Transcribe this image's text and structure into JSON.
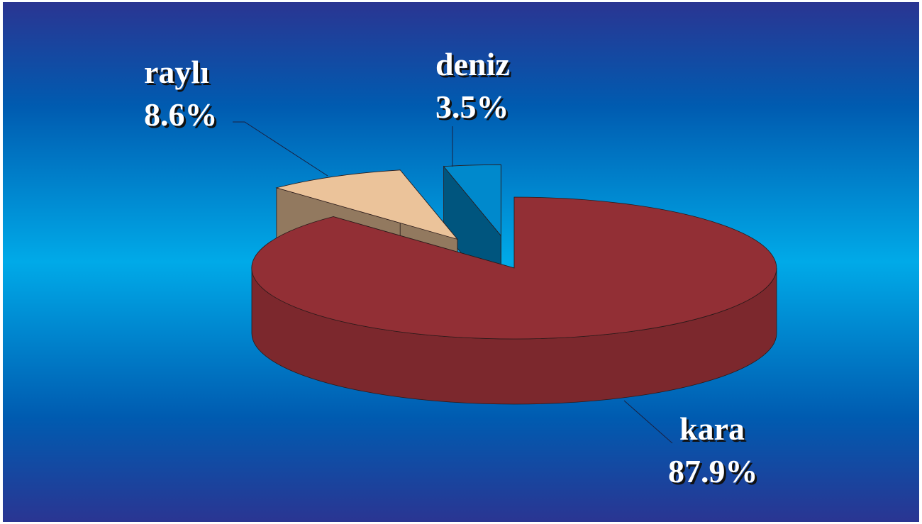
{
  "chart_data": {
    "type": "pie",
    "categories": [
      "kara",
      "raylı",
      "deniz"
    ],
    "values": [
      87.9,
      8.6,
      3.5
    ],
    "value_labels": [
      "87.9%",
      "8.6%",
      "3.5%"
    ],
    "colors": [
      "#922f35",
      "#ebc39a",
      "#0089cc"
    ]
  }
}
